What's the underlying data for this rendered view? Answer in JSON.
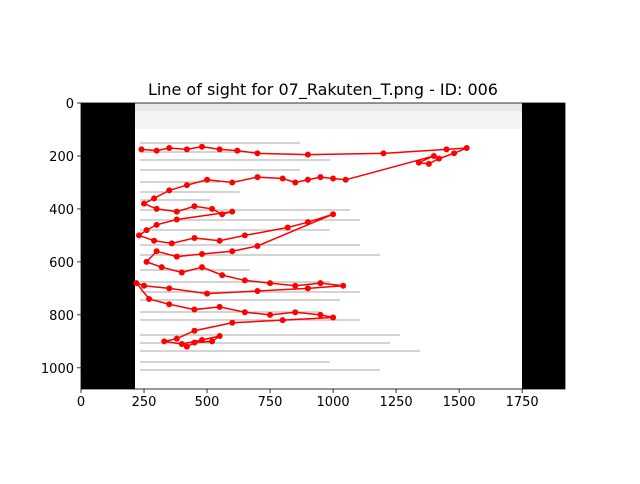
{
  "chart_data": {
    "type": "line",
    "title": "Line of sight for 07_Rakuten_T.png - ID: 006",
    "color": "#ff0000",
    "xlim": [
      0,
      1920
    ],
    "ylim": [
      1080,
      0
    ],
    "xticks": [
      0,
      250,
      500,
      750,
      1000,
      1250,
      1500,
      1750
    ],
    "yticks": [
      0,
      200,
      400,
      600,
      800,
      1000
    ],
    "series": [
      {
        "x": [
          240,
          300,
          350,
          420,
          480,
          550,
          620,
          700,
          900,
          1200,
          1450,
          1530,
          1480,
          1420,
          1380,
          1340,
          1400,
          1050,
          1000,
          950,
          900,
          850,
          800,
          700,
          600,
          500,
          420,
          350,
          290,
          250,
          300,
          380,
          450,
          520,
          560,
          600,
          380,
          300,
          260,
          230,
          290,
          360,
          450,
          550,
          650,
          820,
          900,
          1000,
          700,
          600,
          480,
          380,
          300,
          260,
          320,
          400,
          480,
          560,
          650,
          750,
          850,
          950,
          1040,
          900,
          700,
          500,
          350,
          250,
          220,
          270,
          350,
          450,
          550,
          650,
          750,
          850,
          950,
          1000,
          800,
          600,
          450,
          380,
          330,
          400,
          480,
          550,
          520,
          450,
          420
        ],
        "values": [
          175,
          180,
          170,
          175,
          165,
          175,
          180,
          190,
          195,
          190,
          175,
          170,
          190,
          210,
          230,
          225,
          200,
          290,
          285,
          280,
          290,
          300,
          285,
          280,
          300,
          290,
          310,
          330,
          360,
          380,
          400,
          410,
          390,
          400,
          420,
          410,
          440,
          460,
          480,
          500,
          520,
          530,
          510,
          520,
          500,
          470,
          450,
          420,
          540,
          560,
          570,
          580,
          560,
          600,
          620,
          640,
          620,
          650,
          670,
          680,
          690,
          680,
          690,
          700,
          710,
          720,
          700,
          690,
          680,
          740,
          760,
          780,
          770,
          790,
          800,
          790,
          800,
          810,
          820,
          830,
          860,
          890,
          900,
          910,
          895,
          880,
          900,
          905,
          920
        ]
      }
    ]
  }
}
